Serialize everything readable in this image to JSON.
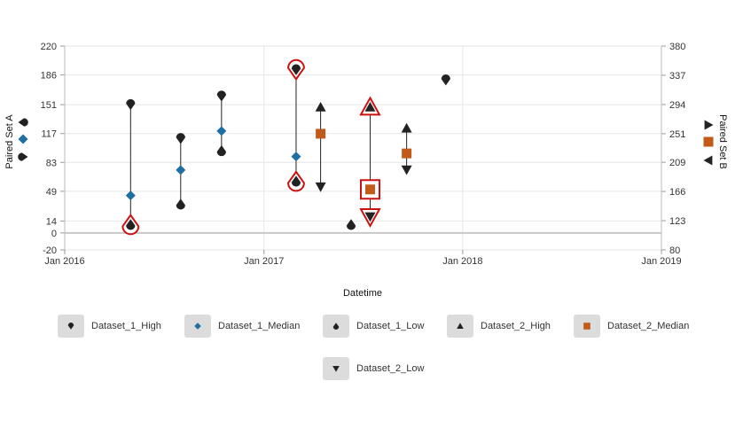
{
  "chart_data": {
    "type": "scatter",
    "xlabel": "Datetime",
    "ylabel_left": "Paired Set A",
    "ylabel_right": "Paired Set B",
    "x_ticks": [
      "Jan 2016",
      "Jan 2017",
      "Jan 2018",
      "Jan 2019"
    ],
    "x_range": [
      "2016-01-01",
      "2019-01-01"
    ],
    "y_left_ticks": [
      -20,
      0,
      14,
      49,
      83,
      117,
      151,
      186,
      220
    ],
    "y_left_range": [
      -20,
      220
    ],
    "y_right_ticks": [
      80,
      123,
      166,
      209,
      251,
      294,
      337,
      380
    ],
    "y_right_range": [
      80,
      380
    ],
    "zero_line": 0,
    "grid": true,
    "series": [
      {
        "name": "Dataset_1_High",
        "axis": "left",
        "symbol": "drop-down",
        "color": "#222222",
        "points": [
          [
            "2016-05-01",
            151
          ],
          [
            "2016-08-01",
            111
          ],
          [
            "2016-10-15",
            161
          ],
          [
            "2017-03-01",
            192
          ],
          [
            "2017-12-01",
            180
          ]
        ]
      },
      {
        "name": "Dataset_1_Median",
        "axis": "left",
        "symbol": "diamond",
        "color": "#1f6fa3",
        "points": [
          [
            "2016-05-01",
            44
          ],
          [
            "2016-08-01",
            74
          ],
          [
            "2016-10-15",
            120
          ],
          [
            "2017-03-01",
            90
          ]
        ]
      },
      {
        "name": "Dataset_1_Low",
        "axis": "left",
        "symbol": "drop-up",
        "color": "#222222",
        "points": [
          [
            "2016-05-01",
            10
          ],
          [
            "2016-08-01",
            34
          ],
          [
            "2016-10-15",
            97
          ],
          [
            "2017-03-01",
            61
          ],
          [
            "2017-06-10",
            10
          ]
        ]
      },
      {
        "name": "Dataset_2_High",
        "axis": "right",
        "symbol": "triangle-up",
        "color": "#222222",
        "points": [
          [
            "2017-04-15",
            290
          ],
          [
            "2017-07-15",
            290
          ],
          [
            "2017-09-20",
            259
          ]
        ]
      },
      {
        "name": "Dataset_2_Median",
        "axis": "right",
        "symbol": "square",
        "color": "#c25a1a",
        "points": [
          [
            "2017-04-15",
            251
          ],
          [
            "2017-07-15",
            169
          ],
          [
            "2017-09-20",
            222
          ]
        ]
      },
      {
        "name": "Dataset_2_Low",
        "axis": "right",
        "symbol": "triangle-down",
        "color": "#222222",
        "points": [
          [
            "2017-04-15",
            173
          ],
          [
            "2017-07-15",
            129
          ],
          [
            "2017-09-20",
            198
          ]
        ]
      }
    ],
    "ranges": [
      {
        "axis": "left",
        "x": "2016-05-01",
        "from": 10,
        "to": 151
      },
      {
        "axis": "left",
        "x": "2016-08-01",
        "from": 34,
        "to": 111
      },
      {
        "axis": "left",
        "x": "2016-10-15",
        "from": 97,
        "to": 161
      },
      {
        "axis": "left",
        "x": "2017-03-01",
        "from": 61,
        "to": 192
      },
      {
        "axis": "right",
        "x": "2017-04-15",
        "from": 173,
        "to": 290
      },
      {
        "axis": "right",
        "x": "2017-07-15",
        "from": 129,
        "to": 290
      },
      {
        "axis": "right",
        "x": "2017-09-20",
        "from": 198,
        "to": 259
      }
    ],
    "highlighted": [
      {
        "series": "Dataset_1_High",
        "x": "2017-03-01"
      },
      {
        "series": "Dataset_1_Low",
        "x": "2016-05-01"
      },
      {
        "series": "Dataset_1_Low",
        "x": "2017-03-01"
      },
      {
        "series": "Dataset_2_High",
        "x": "2017-07-15"
      },
      {
        "series": "Dataset_2_Median",
        "x": "2017-07-15"
      },
      {
        "series": "Dataset_2_Low",
        "x": "2017-07-15"
      }
    ],
    "highlight_color": "#cc1111",
    "legend_position": "bottom"
  },
  "legend": {
    "items": [
      {
        "label": "Dataset_1_High",
        "symbol": "drop-down",
        "color": "#222222"
      },
      {
        "label": "Dataset_1_Median",
        "symbol": "diamond",
        "color": "#1f6fa3"
      },
      {
        "label": "Dataset_1_Low",
        "symbol": "drop-up",
        "color": "#222222"
      },
      {
        "label": "Dataset_2_High",
        "symbol": "triangle-up",
        "color": "#222222"
      },
      {
        "label": "Dataset_2_Median",
        "symbol": "square",
        "color": "#c25a1a"
      },
      {
        "label": "Dataset_2_Low",
        "symbol": "triangle-down",
        "color": "#222222"
      }
    ]
  },
  "axis_keys": {
    "left": [
      {
        "symbol": "drop-left",
        "color": "#222222"
      },
      {
        "symbol": "diamond",
        "color": "#1f6fa3"
      },
      {
        "symbol": "drop-right",
        "color": "#222222"
      }
    ],
    "right": [
      {
        "symbol": "triangle-right",
        "color": "#222222"
      },
      {
        "symbol": "square",
        "color": "#c25a1a"
      },
      {
        "symbol": "triangle-left",
        "color": "#222222"
      }
    ]
  }
}
